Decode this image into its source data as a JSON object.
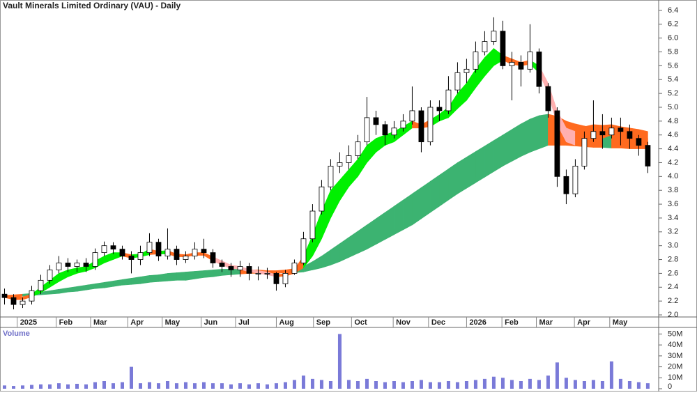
{
  "chart_data": [
    {
      "type": "candlestick",
      "title": "Vault Minerals Limited Ordinary (VAU) - Daily",
      "x": [
        0,
        1,
        2,
        3,
        4,
        5,
        6,
        7,
        8,
        9,
        10,
        11,
        12,
        13,
        14,
        15,
        16,
        17,
        18,
        19,
        20,
        21,
        22,
        23,
        24,
        25,
        26,
        27,
        28,
        29,
        30,
        31,
        32,
        33,
        34,
        35,
        36,
        37,
        38,
        39,
        40,
        41,
        42,
        43,
        44,
        45,
        46,
        47,
        48,
        49,
        50,
        51,
        52,
        53,
        54,
        55,
        56,
        57,
        58,
        59,
        60,
        61,
        62,
        63,
        64,
        65,
        66,
        67,
        68,
        69,
        70,
        71
      ],
      "open": [
        2.3,
        2.25,
        2.15,
        2.2,
        2.35,
        2.5,
        2.65,
        2.75,
        2.7,
        2.75,
        2.7,
        2.9,
        3.0,
        2.95,
        2.85,
        2.8,
        2.9,
        3.05,
        2.85,
        2.95,
        2.8,
        2.85,
        2.95,
        2.9,
        2.75,
        2.7,
        2.65,
        2.7,
        2.6,
        2.6,
        2.6,
        2.45,
        2.6,
        2.75,
        3.1,
        3.5,
        3.85,
        4.15,
        4.2,
        4.3,
        4.5,
        4.85,
        4.75,
        4.6,
        4.7,
        4.8,
        4.95,
        4.5,
        5.0,
        4.95,
        5.25,
        5.5,
        5.55,
        5.8,
        5.95,
        6.1,
        5.6,
        5.65,
        5.55,
        5.8,
        5.3,
        4.95,
        4.0,
        3.75,
        4.15,
        4.55,
        4.65,
        4.6,
        4.7,
        4.65,
        4.55,
        4.45
      ],
      "high": [
        2.38,
        2.3,
        2.25,
        2.42,
        2.58,
        2.72,
        2.85,
        2.82,
        2.8,
        2.82,
        2.96,
        3.06,
        3.05,
        3.0,
        2.92,
        3.0,
        3.18,
        3.1,
        3.25,
        3.0,
        2.92,
        3.05,
        3.1,
        2.95,
        2.8,
        2.75,
        2.78,
        2.75,
        2.7,
        2.68,
        2.62,
        2.65,
        2.8,
        3.2,
        3.6,
        3.95,
        4.25,
        4.35,
        4.45,
        4.6,
        5.15,
        4.95,
        4.8,
        4.8,
        4.9,
        5.3,
        5.0,
        5.1,
        5.1,
        5.45,
        5.65,
        5.7,
        5.95,
        6.1,
        6.3,
        6.25,
        5.8,
        5.75,
        6.2,
        5.85,
        5.35,
        5.0,
        4.1,
        4.25,
        4.65,
        5.1,
        4.9,
        4.85,
        4.85,
        4.75,
        4.6,
        4.5
      ],
      "low": [
        2.15,
        2.08,
        2.1,
        2.15,
        2.3,
        2.45,
        2.6,
        2.62,
        2.62,
        2.62,
        2.65,
        2.85,
        2.88,
        2.8,
        2.6,
        2.72,
        2.85,
        2.78,
        2.8,
        2.72,
        2.75,
        2.8,
        2.82,
        2.68,
        2.62,
        2.55,
        2.55,
        2.5,
        2.5,
        2.52,
        2.35,
        2.4,
        2.58,
        2.72,
        3.05,
        3.45,
        3.8,
        4.05,
        4.1,
        4.25,
        4.45,
        4.6,
        4.45,
        4.55,
        4.65,
        4.75,
        4.35,
        4.45,
        4.8,
        4.9,
        5.2,
        5.35,
        5.5,
        5.75,
        5.9,
        5.55,
        5.1,
        5.3,
        5.5,
        5.2,
        4.85,
        3.85,
        3.6,
        3.7,
        4.1,
        4.5,
        4.4,
        4.55,
        4.45,
        4.4,
        4.3,
        4.05
      ],
      "close": [
        2.25,
        2.15,
        2.2,
        2.35,
        2.5,
        2.65,
        2.75,
        2.7,
        2.75,
        2.7,
        2.9,
        3.0,
        2.95,
        2.85,
        2.8,
        2.9,
        3.05,
        2.85,
        2.95,
        2.8,
        2.85,
        2.95,
        2.9,
        2.75,
        2.7,
        2.65,
        2.7,
        2.6,
        2.6,
        2.6,
        2.45,
        2.6,
        2.75,
        3.1,
        3.5,
        3.85,
        4.15,
        4.2,
        4.3,
        4.5,
        4.85,
        4.75,
        4.6,
        4.7,
        4.8,
        4.95,
        4.5,
        5.0,
        4.95,
        5.25,
        5.5,
        5.55,
        5.8,
        5.95,
        6.1,
        5.6,
        5.65,
        5.55,
        5.8,
        5.3,
        4.95,
        4.0,
        3.75,
        4.15,
        4.55,
        4.65,
        4.6,
        4.7,
        4.65,
        4.55,
        4.45,
        4.15
      ],
      "up_color": "#ffffff",
      "down_color": "#000000",
      "fast_band": {
        "upper": [
          2.28,
          2.27,
          2.26,
          2.3,
          2.4,
          2.5,
          2.6,
          2.65,
          2.68,
          2.7,
          2.78,
          2.85,
          2.9,
          2.9,
          2.87,
          2.88,
          2.95,
          2.92,
          2.93,
          2.88,
          2.87,
          2.9,
          2.9,
          2.84,
          2.78,
          2.72,
          2.7,
          2.66,
          2.64,
          2.62,
          2.58,
          2.6,
          2.66,
          2.85,
          3.15,
          3.5,
          3.8,
          3.95,
          4.1,
          4.25,
          4.45,
          4.55,
          4.6,
          4.65,
          4.72,
          4.8,
          4.75,
          4.82,
          4.9,
          5.0,
          5.2,
          5.35,
          5.55,
          5.72,
          5.85,
          5.75,
          5.7,
          5.65,
          5.68,
          5.6,
          5.35,
          4.95,
          4.7,
          4.65,
          4.72,
          4.75,
          4.74,
          4.75,
          4.72,
          4.7,
          4.68,
          4.65
        ],
        "lower": [
          2.25,
          2.22,
          2.22,
          2.26,
          2.32,
          2.4,
          2.48,
          2.55,
          2.6,
          2.63,
          2.68,
          2.75,
          2.8,
          2.85,
          2.82,
          2.84,
          2.87,
          2.88,
          2.88,
          2.84,
          2.84,
          2.86,
          2.86,
          2.78,
          2.72,
          2.67,
          2.66,
          2.62,
          2.6,
          2.58,
          2.55,
          2.56,
          2.6,
          2.68,
          2.85,
          3.1,
          3.4,
          3.65,
          3.85,
          4.0,
          4.2,
          4.35,
          4.45,
          4.5,
          4.6,
          4.7,
          4.7,
          4.72,
          4.8,
          4.85,
          4.98,
          5.1,
          5.28,
          5.45,
          5.6,
          5.68,
          5.62,
          5.6,
          5.62,
          5.5,
          5.2,
          4.75,
          4.5,
          4.45,
          4.5,
          4.55,
          4.55,
          4.6,
          4.6,
          4.55,
          4.5,
          4.45
        ],
        "colors": [
          "#ff6a1f",
          "#ff6a1f",
          "#ff6a1f",
          "#00f000",
          "#00f000",
          "#00f000",
          "#00f000",
          "#00f000",
          "#00f000",
          "#00f000",
          "#00f000",
          "#00f000",
          "#00f000",
          "#ff6a1f",
          "#00f000",
          "#00f000",
          "#ff6a1f",
          "#00f000",
          "#ff6a1f",
          "#ff6a1f",
          "#ff6a1f",
          "#ff6a1f",
          "#ff6a1f",
          "#ffb0b0",
          "#ffb0b0",
          "#ffb0b0",
          "#ffb0b0",
          "#ffb0b0",
          "#ffb0b0",
          "#ffb0b0",
          "#ff6a1f",
          "#ff6a1f",
          "#ff6a1f",
          "#00f000",
          "#00f000",
          "#00f000",
          "#00f000",
          "#00f000",
          "#00f000",
          "#00f000",
          "#00f000",
          "#00f000",
          "#00f000",
          "#00f000",
          "#00f000",
          "#ff6a1f",
          "#ff6a1f",
          "#00f000",
          "#00f000",
          "#00f000",
          "#00f000",
          "#00f000",
          "#00f000",
          "#00f000",
          "#00f000",
          "#ff6a1f",
          "#ff6a1f",
          "#ff6a1f",
          "#00f000",
          "#ffb0b0",
          "#ffb0b0",
          "#ffb0b0",
          "#ffb0b0",
          "#ff6a1f",
          "#ff6a1f",
          "#ff6a1f",
          "#ff6a1f",
          "#ff6a1f",
          "#ff6a1f",
          "#ff6a1f",
          "#ff6a1f",
          "#ff6a1f"
        ]
      },
      "slow_band": {
        "upper": [
          2.28,
          2.29,
          2.3,
          2.31,
          2.33,
          2.35,
          2.37,
          2.39,
          2.41,
          2.43,
          2.45,
          2.47,
          2.49,
          2.51,
          2.53,
          2.55,
          2.57,
          2.58,
          2.6,
          2.61,
          2.62,
          2.63,
          2.64,
          2.65,
          2.66,
          2.66,
          2.66,
          2.65,
          2.65,
          2.64,
          2.64,
          2.65,
          2.67,
          2.7,
          2.77,
          2.85,
          2.94,
          3.03,
          3.12,
          3.21,
          3.3,
          3.39,
          3.48,
          3.57,
          3.66,
          3.75,
          3.84,
          3.93,
          4.02,
          4.11,
          4.2,
          4.28,
          4.36,
          4.44,
          4.52,
          4.6,
          4.68,
          4.76,
          4.83,
          4.88,
          4.9,
          4.87,
          4.8,
          4.76,
          4.73,
          4.7,
          4.68,
          4.65,
          4.62,
          4.6,
          4.57,
          4.55
        ],
        "lower": [
          2.25,
          2.26,
          2.27,
          2.28,
          2.29,
          2.3,
          2.31,
          2.33,
          2.34,
          2.36,
          2.38,
          2.39,
          2.41,
          2.43,
          2.44,
          2.45,
          2.47,
          2.48,
          2.49,
          2.5,
          2.5,
          2.52,
          2.54,
          2.55,
          2.57,
          2.58,
          2.59,
          2.6,
          2.6,
          2.6,
          2.6,
          2.61,
          2.61,
          2.62,
          2.65,
          2.68,
          2.72,
          2.77,
          2.83,
          2.89,
          2.95,
          3.02,
          3.09,
          3.16,
          3.23,
          3.3,
          3.39,
          3.48,
          3.57,
          3.66,
          3.75,
          3.83,
          3.91,
          3.99,
          4.07,
          4.15,
          4.22,
          4.29,
          4.35,
          4.4,
          4.45,
          4.45,
          4.45,
          4.44,
          4.43,
          4.42,
          4.42,
          4.41,
          4.41,
          4.4,
          4.4,
          4.4
        ],
        "colors": [
          "#ff6a1f",
          "#ff6a1f",
          "#3cb371",
          "#3cb371",
          "#3cb371",
          "#3cb371",
          "#3cb371",
          "#3cb371",
          "#3cb371",
          "#3cb371",
          "#3cb371",
          "#3cb371",
          "#3cb371",
          "#3cb371",
          "#3cb371",
          "#3cb371",
          "#3cb371",
          "#3cb371",
          "#3cb371",
          "#3cb371",
          "#3cb371",
          "#3cb371",
          "#3cb371",
          "#3cb371",
          "#3cb371",
          "#3cb371",
          "#ff6a1f",
          "#ff6a1f",
          "#ff6a1f",
          "#ff6a1f",
          "#ff6a1f",
          "#ff6a1f",
          "#3cb371",
          "#3cb371",
          "#3cb371",
          "#3cb371",
          "#3cb371",
          "#3cb371",
          "#3cb371",
          "#3cb371",
          "#3cb371",
          "#3cb371",
          "#3cb371",
          "#3cb371",
          "#3cb371",
          "#3cb371",
          "#3cb371",
          "#3cb371",
          "#3cb371",
          "#3cb371",
          "#3cb371",
          "#3cb371",
          "#3cb371",
          "#3cb371",
          "#3cb371",
          "#3cb371",
          "#3cb371",
          "#3cb371",
          "#3cb371",
          "#3cb371",
          "#ff6a1f",
          "#ff6a1f",
          "#ff6a1f",
          "#ff6a1f",
          "#ff6a1f",
          "#ff6a1f",
          "#3cb371",
          "#ff6a1f",
          "#ff6a1f",
          "#ff6a1f",
          "#ff6a1f",
          "#ff6a1f"
        ]
      },
      "xlim": [
        -0.5,
        72.2
      ],
      "xticks": [
        {
          "value": 1.4,
          "label": "2025"
        },
        {
          "value": 5.7,
          "label": "Feb"
        },
        {
          "value": 9.5,
          "label": "Mar"
        },
        {
          "value": 13.6,
          "label": "Apr"
        },
        {
          "value": 17.4,
          "label": "May"
        },
        {
          "value": 21.7,
          "label": "Jun"
        },
        {
          "value": 25.5,
          "label": "Jul"
        },
        {
          "value": 30.0,
          "label": "Aug"
        },
        {
          "value": 34.1,
          "label": "Sep"
        },
        {
          "value": 38.3,
          "label": "Oct"
        },
        {
          "value": 42.9,
          "label": "Nov"
        },
        {
          "value": 46.8,
          "label": "Dec"
        },
        {
          "value": 51.0,
          "label": "2026"
        },
        {
          "value": 54.9,
          "label": "Feb"
        },
        {
          "value": 58.7,
          "label": "Mar"
        },
        {
          "value": 62.9,
          "label": "Apr"
        },
        {
          "value": 66.8,
          "label": "May"
        }
      ],
      "ylim": [
        1.97,
        6.55
      ],
      "yticks": [
        {
          "value": 2,
          "label": "2.0"
        },
        2.2,
        2.4,
        2.6,
        2.8,
        {
          "value": 3,
          "label": "3.0"
        },
        3.2,
        3.4,
        3.6,
        3.8,
        {
          "value": 4,
          "label": "4.0"
        },
        4.2,
        4.4,
        4.6,
        4.8,
        {
          "value": 5,
          "label": "5.0"
        },
        5.2,
        5.4,
        5.6,
        5.8,
        {
          "value": 6,
          "label": "6.0"
        },
        6.2,
        6.4
      ]
    },
    {
      "type": "bar",
      "title": "Volume",
      "x": [
        0,
        1,
        2,
        3,
        4,
        5,
        6,
        7,
        8,
        9,
        10,
        11,
        12,
        13,
        14,
        15,
        16,
        17,
        18,
        19,
        20,
        21,
        22,
        23,
        24,
        25,
        26,
        27,
        28,
        29,
        30,
        31,
        32,
        33,
        34,
        35,
        36,
        37,
        38,
        39,
        40,
        41,
        42,
        43,
        44,
        45,
        46,
        47,
        48,
        49,
        50,
        51,
        52,
        53,
        54,
        55,
        56,
        57,
        58,
        59,
        60,
        61,
        62,
        63,
        64,
        65,
        66,
        67,
        68,
        69,
        70,
        71
      ],
      "values": [
        3000000,
        2500000,
        3000000,
        3500000,
        4000000,
        4000000,
        5000000,
        4000000,
        4500000,
        4000000,
        6000000,
        7000000,
        5000000,
        6000000,
        20000000,
        5000000,
        6000000,
        5000000,
        7000000,
        5000000,
        6000000,
        5000000,
        6000000,
        5000000,
        5000000,
        4000000,
        5000000,
        4000000,
        5000000,
        4000000,
        5000000,
        6000000,
        8000000,
        12000000,
        9000000,
        8000000,
        7000000,
        50000000,
        8000000,
        7000000,
        9000000,
        7000000,
        6000000,
        7000000,
        6000000,
        7000000,
        8000000,
        6000000,
        6000000,
        7000000,
        6000000,
        7000000,
        8000000,
        9000000,
        11000000,
        10000000,
        8000000,
        7000000,
        9000000,
        8000000,
        12000000,
        24000000,
        10000000,
        8000000,
        7000000,
        8000000,
        7000000,
        25000000,
        9000000,
        7000000,
        6000000,
        5000000
      ],
      "color": "#7a7ad8",
      "xlim": [
        -0.5,
        72.2
      ],
      "ylim": [
        0,
        56000000
      ],
      "yticks": [
        0,
        {
          "value": 10000000,
          "label": "10M"
        },
        {
          "value": 20000000,
          "label": "20M"
        },
        {
          "value": 30000000,
          "label": "30M"
        },
        {
          "value": 40000000,
          "label": "40M"
        },
        {
          "value": 50000000,
          "label": "50M"
        }
      ]
    }
  ]
}
